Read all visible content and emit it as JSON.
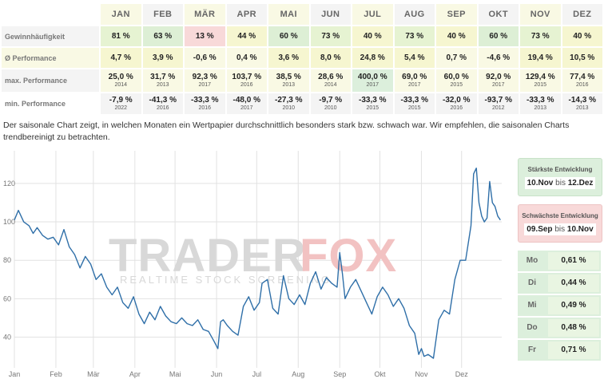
{
  "table": {
    "months": [
      "JAN",
      "FEB",
      "MÄR",
      "APR",
      "MAI",
      "JUN",
      "JUL",
      "AUG",
      "SEP",
      "OKT",
      "NOV",
      "DEZ"
    ],
    "rows": [
      {
        "label": "Gewinnhäufigkeit",
        "cells": [
          {
            "v": "81 %"
          },
          {
            "v": "63 %"
          },
          {
            "v": "13 %"
          },
          {
            "v": "44 %"
          },
          {
            "v": "60 %"
          },
          {
            "v": "73 %"
          },
          {
            "v": "40 %"
          },
          {
            "v": "73 %"
          },
          {
            "v": "40 %"
          },
          {
            "v": "60 %"
          },
          {
            "v": "73 %"
          },
          {
            "v": "40 %"
          }
        ]
      },
      {
        "label": "Ø Performance",
        "cells": [
          {
            "v": "4,7 %"
          },
          {
            "v": "3,9 %"
          },
          {
            "v": "-0,6 %"
          },
          {
            "v": "0,4 %"
          },
          {
            "v": "3,6 %"
          },
          {
            "v": "8,0 %"
          },
          {
            "v": "24,8 %"
          },
          {
            "v": "5,4 %"
          },
          {
            "v": "0,7 %"
          },
          {
            "v": "-4,6 %"
          },
          {
            "v": "19,4 %"
          },
          {
            "v": "10,5 %"
          }
        ]
      },
      {
        "label": "max. Performance",
        "cells": [
          {
            "v": "25,0 %",
            "y": "2014"
          },
          {
            "v": "31,7 %",
            "y": "2013"
          },
          {
            "v": "92,3 %",
            "y": "2017"
          },
          {
            "v": "103,7 %",
            "y": "2016"
          },
          {
            "v": "38,5 %",
            "y": "2013"
          },
          {
            "v": "28,6 %",
            "y": "2014"
          },
          {
            "v": "400,0 %",
            "y": "2017"
          },
          {
            "v": "69,0 %",
            "y": "2017"
          },
          {
            "v": "60,0 %",
            "y": "2015"
          },
          {
            "v": "92,0 %",
            "y": "2017"
          },
          {
            "v": "129,4 %",
            "y": "2015"
          },
          {
            "v": "77,4 %",
            "y": "2016"
          }
        ]
      },
      {
        "label": "min. Performance",
        "cells": [
          {
            "v": "-7,9 %",
            "y": "2022"
          },
          {
            "v": "-41,3 %",
            "y": "2016"
          },
          {
            "v": "-33,3 %",
            "y": "2016"
          },
          {
            "v": "-48,0 %",
            "y": "2017"
          },
          {
            "v": "-27,3 %",
            "y": "2010"
          },
          {
            "v": "-9,7 %",
            "y": "2010"
          },
          {
            "v": "-33,3 %",
            "y": "2015"
          },
          {
            "v": "-33,3 %",
            "y": "2015"
          },
          {
            "v": "-32,0 %",
            "y": "2016"
          },
          {
            "v": "-93,7 %",
            "y": "2012"
          },
          {
            "v": "-33,3 %",
            "y": "2013"
          },
          {
            "v": "-14,3 %",
            "y": "2013"
          }
        ]
      }
    ]
  },
  "description": "Der saisonale Chart zeigt, in welchen Monaten ein Wertpapier durchschnittlich besonders stark bzw. schwach war. Wir empfehlen, die saisonalen Charts trendbereinigt zu betrachten.",
  "watermark": {
    "logo_left": "TRADER",
    "logo_right": "FOX",
    "sub": "REALTIME STOCK SCREENING"
  },
  "colors": {
    "line": "#2f6fa8",
    "grid": "#e2e2e2",
    "logo_grey": "#d8d8d8",
    "logo_red": "#f2c2c2"
  },
  "chart_data": {
    "type": "line",
    "x_unit": "day-of-year",
    "xlim": [
      1,
      365
    ],
    "ylim": [
      24,
      137
    ],
    "yticks": [
      40,
      60,
      80,
      100,
      120
    ],
    "xticks": [
      {
        "label": "Jan",
        "x": 1
      },
      {
        "label": "Feb",
        "x": 32
      },
      {
        "label": "Mär",
        "x": 60
      },
      {
        "label": "Apr",
        "x": 91
      },
      {
        "label": "Mai",
        "x": 121
      },
      {
        "label": "Jun",
        "x": 152
      },
      {
        "label": "Jul",
        "x": 182
      },
      {
        "label": "Aug",
        "x": 213
      },
      {
        "label": "Sep",
        "x": 244
      },
      {
        "label": "Okt",
        "x": 274
      },
      {
        "label": "Nov",
        "x": 305
      },
      {
        "label": "Dez",
        "x": 335
      }
    ],
    "grid": true,
    "series": [
      {
        "x": [
          1,
          4,
          8,
          12,
          15,
          18,
          22,
          26,
          30,
          34,
          38,
          42,
          46,
          50,
          54,
          58,
          62,
          66,
          70,
          74,
          78,
          82,
          86,
          90,
          94,
          98,
          102,
          106,
          110,
          114,
          118,
          122,
          126,
          130,
          134,
          138,
          142,
          146,
          150,
          153,
          155,
          157,
          160,
          164,
          168,
          172,
          176,
          180,
          184,
          186,
          190,
          194,
          198,
          202,
          206,
          210,
          214,
          218,
          222,
          226,
          230,
          234,
          238,
          242,
          244,
          246,
          248,
          252,
          256,
          260,
          264,
          268,
          272,
          276,
          280,
          284,
          288,
          292,
          296,
          300,
          303,
          305,
          307,
          310,
          314,
          318,
          322,
          326,
          330,
          334,
          338,
          342,
          344,
          346,
          348,
          350,
          352,
          354,
          356,
          358,
          360,
          362,
          364
        ],
        "y": [
          101,
          106,
          100,
          98,
          94,
          97,
          93,
          91,
          92,
          88,
          96,
          87,
          83,
          76,
          82,
          78,
          70,
          73,
          66,
          62,
          66,
          58,
          55,
          61,
          52,
          47,
          53,
          49,
          56,
          51,
          48,
          47,
          50,
          47,
          46,
          49,
          44,
          43,
          38,
          34,
          48,
          49,
          46,
          43,
          41,
          56,
          61,
          54,
          58,
          68,
          70,
          55,
          52,
          72,
          60,
          57,
          62,
          57,
          68,
          74,
          65,
          71,
          68,
          66,
          84,
          73,
          60,
          66,
          70,
          64,
          58,
          52,
          61,
          66,
          62,
          56,
          60,
          55,
          46,
          42,
          31,
          34,
          30,
          31,
          29,
          49,
          54,
          52,
          70,
          80,
          80,
          98,
          125,
          128,
          110,
          103,
          100,
          102,
          121,
          110,
          108,
          103,
          101
        ]
      }
    ]
  },
  "panel": {
    "best": {
      "title": "Stärkste Entwicklung",
      "from": "10.Nov",
      "sep": "bis",
      "to": "12.Dez"
    },
    "worst": {
      "title": "Schwächste Entwicklung",
      "from": "09.Sep",
      "sep": "bis",
      "to": "10.Nov"
    },
    "weekdays": [
      {
        "label": "Mo",
        "value": "0,61 %"
      },
      {
        "label": "Di",
        "value": "0,44 %"
      },
      {
        "label": "Mi",
        "value": "0,49 %"
      },
      {
        "label": "Do",
        "value": "0,48 %"
      },
      {
        "label": "Fr",
        "value": "0,71 %"
      }
    ]
  }
}
